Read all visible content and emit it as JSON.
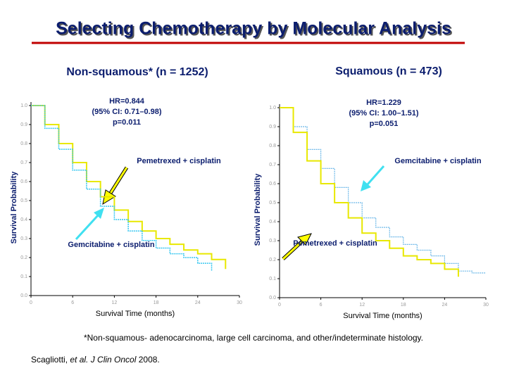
{
  "title": "Selecting Chemotherapy by Molecular Analysis",
  "footnote": "*Non-squamous- adenocarcinoma, large cell carcinoma, and other/indeterminate histology.",
  "citation": [
    "Scagliotti, ",
    "et al. J Clin Oncol",
    " 2008."
  ],
  "chart_data": [
    {
      "type": "line",
      "step": true,
      "subtitle": "Non-squamous* (n = 1252)",
      "hr_text": [
        "HR=0.844",
        "(95% CI: 0.71–0.98)",
        "p=0.011"
      ],
      "x_label": "Survival Time (months)",
      "y_label": "Survival Probability",
      "annotations": [
        "Pemetrexed + cisplatin",
        "Gemcitabine + cisplatin"
      ],
      "x": [
        0,
        2,
        4,
        6,
        8,
        10,
        12,
        14,
        16,
        18,
        20,
        22,
        24,
        26,
        28,
        30
      ],
      "xlim": [
        0,
        30
      ],
      "xticks": [
        0,
        6,
        12,
        18,
        24,
        30
      ],
      "ylim": [
        0,
        1
      ],
      "yticks": [
        {
          "value": 0,
          "label": "0.0"
        },
        0.1,
        0.2,
        0.3,
        0.4,
        0.5,
        0.6,
        0.7,
        0.8,
        0.9,
        {
          "value": 1,
          "label": "1.0"
        }
      ],
      "series": [
        {
          "name": "Pemetrexed + cisplatin",
          "color": "#e8e800",
          "values": [
            1.0,
            0.9,
            0.8,
            0.7,
            0.6,
            0.52,
            0.45,
            0.39,
            0.34,
            0.3,
            0.27,
            0.24,
            0.22,
            0.19,
            0.14,
            null
          ]
        },
        {
          "name": "Gemcitabine + cisplatin",
          "color": "#33c6f0",
          "values": [
            1.0,
            0.88,
            0.77,
            0.66,
            0.56,
            0.47,
            0.4,
            0.34,
            0.29,
            0.25,
            0.22,
            0.2,
            0.17,
            0.13,
            null,
            null
          ]
        }
      ]
    },
    {
      "type": "line",
      "step": true,
      "subtitle": "Squamous (n = 473)",
      "hr_text": [
        "HR=1.229",
        "(95% CI: 1.00–1.51)",
        "p=0.051"
      ],
      "x_label": "Survival Time (months)",
      "y_label": "Survival Probability",
      "annotations": [
        "Gemcitabine + cisplatin",
        "Pemetrexed + cisplatin"
      ],
      "x": [
        0,
        2,
        4,
        6,
        8,
        10,
        12,
        14,
        16,
        18,
        20,
        22,
        24,
        26,
        28,
        30
      ],
      "xlim": [
        0,
        30
      ],
      "xticks": [
        0,
        6,
        12,
        18,
        24,
        30
      ],
      "ylim": [
        0,
        1
      ],
      "yticks": [
        {
          "value": 0,
          "label": "0.0"
        },
        0.1,
        0.2,
        0.3,
        0.4,
        0.5,
        0.6,
        0.7,
        0.8,
        0.9,
        {
          "value": 1,
          "label": "1.0"
        }
      ],
      "series": [
        {
          "name": "Gemcitabine + cisplatin",
          "color": "#6cb8e8",
          "values": [
            1.0,
            0.9,
            0.78,
            0.68,
            0.58,
            0.5,
            0.42,
            0.37,
            0.32,
            0.28,
            0.25,
            0.22,
            0.18,
            0.14,
            0.13,
            0.13
          ]
        },
        {
          "name": "Pemetrexed + cisplatin",
          "color": "#e8e800",
          "values": [
            1.0,
            0.87,
            0.72,
            0.6,
            0.5,
            0.42,
            0.34,
            0.3,
            0.26,
            0.22,
            0.2,
            0.18,
            0.15,
            0.11,
            null,
            null
          ]
        }
      ]
    }
  ]
}
